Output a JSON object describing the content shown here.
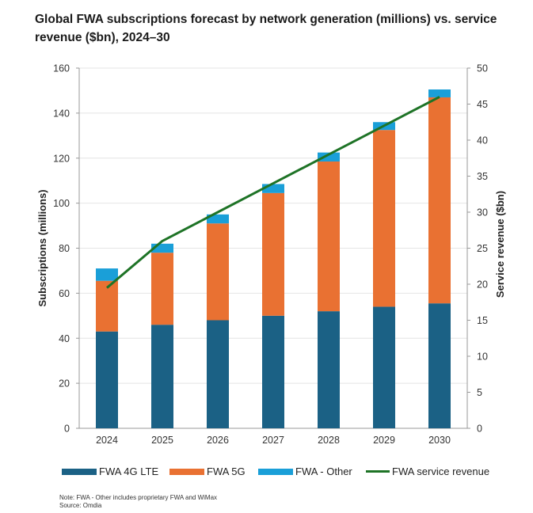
{
  "chart_data": {
    "type": "bar",
    "stacked": true,
    "title": "Global FWA subscriptions forecast by network generation (millions) vs. service revenue ($bn), 2024–30",
    "categories": [
      "2024",
      "2025",
      "2026",
      "2027",
      "2028",
      "2029",
      "2030"
    ],
    "series": [
      {
        "name": "FWA 4G LTE",
        "type": "bar",
        "axis": "left",
        "color": "#1b6185",
        "values": [
          43,
          46,
          48,
          50,
          52,
          54,
          55.5
        ]
      },
      {
        "name": "FWA 5G",
        "type": "bar",
        "axis": "left",
        "color": "#e97132",
        "values": [
          22.5,
          32,
          43,
          54.5,
          66.5,
          78.5,
          91.5
        ]
      },
      {
        "name": "FWA - Other",
        "type": "bar",
        "axis": "left",
        "color": "#1a9fd8",
        "values": [
          5.5,
          4,
          4,
          4,
          4,
          3.5,
          3.5
        ]
      },
      {
        "name": "FWA service revenue",
        "type": "line",
        "axis": "right",
        "color": "#1e7326",
        "values": [
          19.5,
          26,
          30,
          34,
          38,
          42,
          46
        ]
      }
    ],
    "ylabel": "Subscriptions (millions)",
    "y2label": "Service revenue ($bn)",
    "ylim": [
      0,
      160
    ],
    "y2lim": [
      0,
      50
    ],
    "yticks": [
      "0",
      "20",
      "40",
      "60",
      "80",
      "100",
      "120",
      "140",
      "160"
    ],
    "y2ticks": [
      "0",
      "5",
      "10",
      "15",
      "20",
      "25",
      "30",
      "35",
      "40",
      "45",
      "50"
    ],
    "grid": true,
    "legend_placement": "bottom"
  },
  "legend": {
    "items": [
      "FWA 4G LTE",
      "FWA 5G",
      "FWA - Other",
      "FWA service revenue"
    ]
  },
  "notes": {
    "note": "Note: FWA - Other includes proprietary FWA and WiMax",
    "source": "Source: Omdia"
  }
}
